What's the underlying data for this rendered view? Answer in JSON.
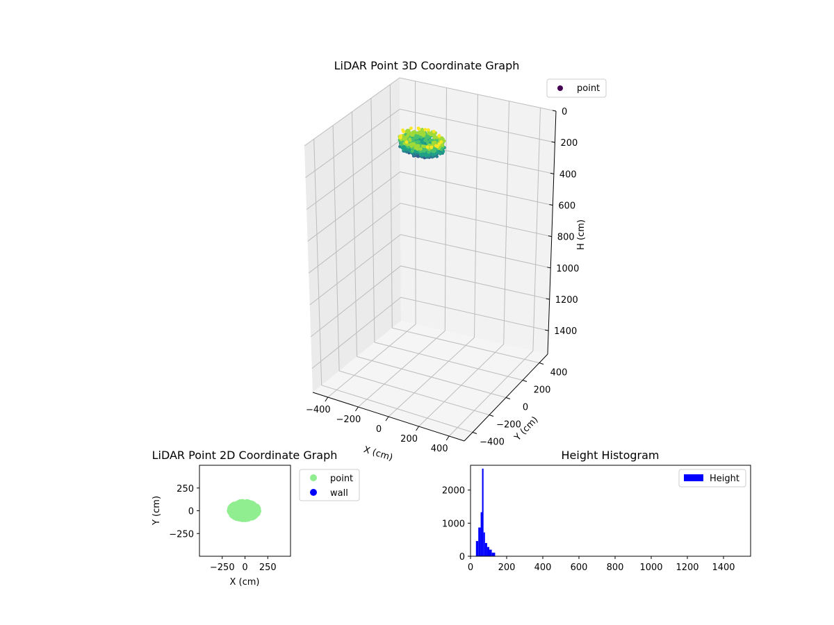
{
  "chart_data": [
    {
      "type": "scatter3d",
      "title": "LiDAR Point 3D Coordinate Graph",
      "xlabel": "X (cm)",
      "ylabel": "Y (cm)",
      "zlabel": "H (cm)",
      "x_ticks": [
        -400,
        -200,
        0,
        200,
        400
      ],
      "y_ticks": [
        -400,
        -200,
        0,
        200,
        400
      ],
      "z_ticks": [
        0,
        200,
        400,
        600,
        800,
        1000,
        1200,
        1400
      ],
      "xlim": [
        -500,
        500
      ],
      "ylim": [
        -500,
        500
      ],
      "zlim": [
        0,
        1550
      ],
      "z_inverted": true,
      "colormap": "viridis",
      "legend": [
        {
          "label": "point",
          "color": "#440154"
        }
      ],
      "cloud": {
        "x_range": [
          -150,
          130
        ],
        "y_range": [
          -100,
          100
        ],
        "h_range": [
          30,
          150
        ]
      }
    },
    {
      "type": "scatter",
      "title": "LiDAR Point 2D Coordinate Graph",
      "xlabel": "X (cm)",
      "ylabel": "Y (cm)",
      "x_ticks": [
        -250,
        0,
        250
      ],
      "y_ticks": [
        250,
        0,
        -250
      ],
      "x_tick_labels": [
        "−250",
        "0",
        "250"
      ],
      "y_tick_labels": [
        "250",
        "0",
        "−250"
      ],
      "xlim": [
        -500,
        500
      ],
      "ylim": [
        -500,
        500
      ],
      "legend": [
        {
          "label": "point",
          "color": "#90ee90"
        },
        {
          "label": "wall",
          "color": "#0000ff"
        }
      ],
      "cloud": {
        "x_range": [
          -170,
          150
        ],
        "y_range": [
          -95,
          100
        ],
        "color": "#90ee90"
      }
    },
    {
      "type": "histogram",
      "title": "Height Histogram",
      "xlabel": "",
      "ylabel": "",
      "x_ticks": [
        0,
        200,
        400,
        600,
        800,
        1000,
        1200,
        1400
      ],
      "y_ticks": [
        0,
        1000,
        2000
      ],
      "xlim": [
        0,
        1550
      ],
      "ylim": [
        0,
        2750
      ],
      "bar_color": "#0000ff",
      "legend": [
        {
          "label": "Height",
          "color": "#0000ff"
        }
      ],
      "bins": [
        {
          "x0": 30,
          "x1": 43,
          "count": 460
        },
        {
          "x0": 43,
          "x1": 56,
          "count": 870
        },
        {
          "x0": 56,
          "x1": 64,
          "count": 1330
        },
        {
          "x0": 64,
          "x1": 72,
          "count": 2650
        },
        {
          "x0": 72,
          "x1": 80,
          "count": 720
        },
        {
          "x0": 80,
          "x1": 92,
          "count": 400
        },
        {
          "x0": 92,
          "x1": 104,
          "count": 280
        },
        {
          "x0": 104,
          "x1": 118,
          "count": 200
        },
        {
          "x0": 118,
          "x1": 136,
          "count": 110
        }
      ]
    }
  ]
}
